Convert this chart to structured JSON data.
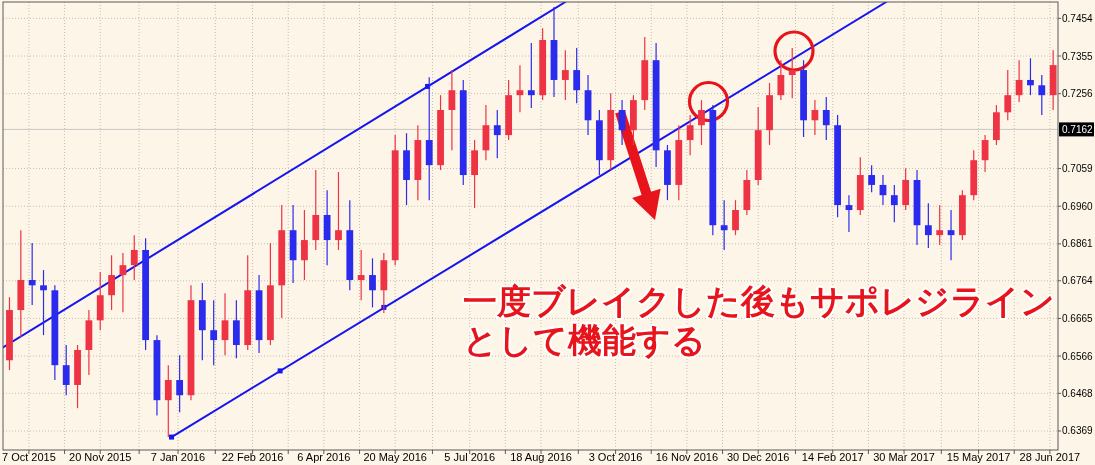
{
  "chart_data": {
    "type": "candlestick",
    "x": [
      "2015-09-25",
      "2015-10-02",
      "2015-10-09",
      "2015-10-16",
      "2015-10-23",
      "2015-10-30",
      "2015-11-06",
      "2015-11-13",
      "2015-11-20",
      "2015-11-27",
      "2015-12-04",
      "2015-12-11",
      "2015-12-18",
      "2015-12-25",
      "2016-01-01",
      "2016-01-08",
      "2016-01-15",
      "2016-01-22",
      "2016-01-29",
      "2016-02-05",
      "2016-02-12",
      "2016-02-19",
      "2016-02-26",
      "2016-03-04",
      "2016-03-11",
      "2016-03-18",
      "2016-03-25",
      "2016-04-01",
      "2016-04-08",
      "2016-04-15",
      "2016-04-22",
      "2016-04-29",
      "2016-05-06",
      "2016-05-13",
      "2016-05-20",
      "2016-05-27",
      "2016-06-03",
      "2016-06-10",
      "2016-06-17",
      "2016-06-24",
      "2016-07-01",
      "2016-07-08",
      "2016-07-15",
      "2016-07-22",
      "2016-07-29",
      "2016-08-05",
      "2016-08-12",
      "2016-08-19",
      "2016-08-26",
      "2016-09-02",
      "2016-09-09",
      "2016-09-16",
      "2016-09-23",
      "2016-09-30",
      "2016-10-07",
      "2016-10-14",
      "2016-10-21",
      "2016-10-28",
      "2016-11-04",
      "2016-11-11",
      "2016-11-18",
      "2016-11-25",
      "2016-12-02",
      "2016-12-09",
      "2016-12-16",
      "2016-12-23",
      "2016-12-30",
      "2017-01-06",
      "2017-01-13",
      "2017-01-20",
      "2017-01-27",
      "2017-02-03",
      "2017-02-10",
      "2017-02-17",
      "2017-02-24",
      "2017-03-03",
      "2017-03-10",
      "2017-03-17",
      "2017-03-24",
      "2017-03-31",
      "2017-04-07",
      "2017-04-14",
      "2017-04-21",
      "2017-04-28",
      "2017-05-05",
      "2017-05-12",
      "2017-05-19",
      "2017-05-26",
      "2017-06-02",
      "2017-06-09",
      "2017-06-16",
      "2017-06-23",
      "2017-06-30"
    ],
    "ohlc": [
      [
        0.6555,
        0.6721,
        0.6529,
        0.6687
      ],
      [
        0.6687,
        0.6897,
        0.6616,
        0.6766
      ],
      [
        0.6766,
        0.6863,
        0.67,
        0.6752
      ],
      [
        0.6752,
        0.6792,
        0.6621,
        0.6739
      ],
      [
        0.6739,
        0.6752,
        0.6503,
        0.6542
      ],
      [
        0.6542,
        0.6595,
        0.6463,
        0.649
      ],
      [
        0.649,
        0.6595,
        0.6429,
        0.6582
      ],
      [
        0.6582,
        0.6687,
        0.6516,
        0.666
      ],
      [
        0.666,
        0.6787,
        0.6634,
        0.6726
      ],
      [
        0.6726,
        0.6831,
        0.6687,
        0.6779
      ],
      [
        0.6779,
        0.6837,
        0.6681,
        0.6805
      ],
      [
        0.6805,
        0.6884,
        0.6766,
        0.6845
      ],
      [
        0.6845,
        0.6876,
        0.6582,
        0.6608
      ],
      [
        0.6608,
        0.6621,
        0.641,
        0.645
      ],
      [
        0.645,
        0.6542,
        0.6353,
        0.6503
      ],
      [
        0.6503,
        0.6568,
        0.6418,
        0.6463
      ],
      [
        0.6463,
        0.6752,
        0.645,
        0.6713
      ],
      [
        0.6713,
        0.6758,
        0.6555,
        0.6634
      ],
      [
        0.6634,
        0.6713,
        0.6542,
        0.6608
      ],
      [
        0.6608,
        0.6731,
        0.6568,
        0.666
      ],
      [
        0.666,
        0.6713,
        0.656,
        0.6595
      ],
      [
        0.6595,
        0.6831,
        0.6582,
        0.6739
      ],
      [
        0.6739,
        0.6779,
        0.6574,
        0.6608
      ],
      [
        0.6608,
        0.6863,
        0.6595,
        0.6752
      ],
      [
        0.6752,
        0.6963,
        0.6666,
        0.6897
      ],
      [
        0.6897,
        0.6963,
        0.6758,
        0.6818
      ],
      [
        0.6818,
        0.695,
        0.6766,
        0.6871
      ],
      [
        0.6871,
        0.7055,
        0.6845,
        0.6937
      ],
      [
        0.6937,
        0.7002,
        0.6805,
        0.6871
      ],
      [
        0.6871,
        0.705,
        0.6845,
        0.6897
      ],
      [
        0.6897,
        0.6976,
        0.6739,
        0.6766
      ],
      [
        0.6766,
        0.6845,
        0.6713,
        0.6779
      ],
      [
        0.6779,
        0.6823,
        0.6694,
        0.6739
      ],
      [
        0.6739,
        0.6837,
        0.6679,
        0.6818
      ],
      [
        0.6818,
        0.7147,
        0.6805,
        0.7107
      ],
      [
        0.7107,
        0.7152,
        0.6963,
        0.7029
      ],
      [
        0.7029,
        0.7173,
        0.6976,
        0.7134
      ],
      [
        0.7134,
        0.7299,
        0.6976,
        0.7068
      ],
      [
        0.7068,
        0.7252,
        0.7055,
        0.7213
      ],
      [
        0.7213,
        0.7318,
        0.7107,
        0.7265
      ],
      [
        0.7265,
        0.7292,
        0.7016,
        0.7042
      ],
      [
        0.7042,
        0.7134,
        0.6955,
        0.7107
      ],
      [
        0.7107,
        0.7226,
        0.7081,
        0.7173
      ],
      [
        0.7173,
        0.7213,
        0.7086,
        0.7147
      ],
      [
        0.7147,
        0.7292,
        0.7134,
        0.7252
      ],
      [
        0.7252,
        0.7331,
        0.7207,
        0.7265
      ],
      [
        0.7265,
        0.7389,
        0.7218,
        0.7252
      ],
      [
        0.7252,
        0.7428,
        0.7239,
        0.7397
      ],
      [
        0.7397,
        0.7484,
        0.7247,
        0.7292
      ],
      [
        0.7292,
        0.737,
        0.7239,
        0.7318
      ],
      [
        0.7318,
        0.7376,
        0.7231,
        0.7265
      ],
      [
        0.7265,
        0.7305,
        0.7147,
        0.7186
      ],
      [
        0.7186,
        0.7213,
        0.7042,
        0.7081
      ],
      [
        0.7081,
        0.7257,
        0.7055,
        0.7213
      ],
      [
        0.7213,
        0.7239,
        0.7121,
        0.716
      ],
      [
        0.716,
        0.7252,
        0.7121,
        0.7239
      ],
      [
        0.7239,
        0.7405,
        0.7213,
        0.7344
      ],
      [
        0.7344,
        0.7389,
        0.7063,
        0.7107
      ],
      [
        0.7107,
        0.7121,
        0.6976,
        0.7016
      ],
      [
        0.7016,
        0.7173,
        0.6976,
        0.7134
      ],
      [
        0.7134,
        0.72,
        0.7094,
        0.7173
      ],
      [
        0.7173,
        0.7239,
        0.7121,
        0.7213
      ],
      [
        0.7213,
        0.7226,
        0.6884,
        0.691
      ],
      [
        0.691,
        0.6976,
        0.6845,
        0.6897
      ],
      [
        0.6897,
        0.6976,
        0.6884,
        0.695
      ],
      [
        0.695,
        0.7055,
        0.6937,
        0.7029
      ],
      [
        0.7029,
        0.7221,
        0.7016,
        0.716
      ],
      [
        0.716,
        0.7284,
        0.7121,
        0.7252
      ],
      [
        0.7252,
        0.7344,
        0.7239,
        0.7305
      ],
      [
        0.7305,
        0.7376,
        0.7244,
        0.7318
      ],
      [
        0.7318,
        0.7344,
        0.7142,
        0.7186
      ],
      [
        0.7186,
        0.7239,
        0.7147,
        0.7213
      ],
      [
        0.7213,
        0.7247,
        0.7134,
        0.7173
      ],
      [
        0.7173,
        0.72,
        0.6931,
        0.6963
      ],
      [
        0.6963,
        0.6989,
        0.6892,
        0.695
      ],
      [
        0.695,
        0.7089,
        0.6937,
        0.7042
      ],
      [
        0.7042,
        0.7068,
        0.6997,
        0.7016
      ],
      [
        0.7016,
        0.7042,
        0.6963,
        0.6989
      ],
      [
        0.6989,
        0.7016,
        0.6918,
        0.6963
      ],
      [
        0.6963,
        0.706,
        0.695,
        0.7029
      ],
      [
        0.7029,
        0.7055,
        0.6858,
        0.691
      ],
      [
        0.691,
        0.6968,
        0.685,
        0.6884
      ],
      [
        0.6884,
        0.6963,
        0.6858,
        0.6897
      ],
      [
        0.6897,
        0.695,
        0.6818,
        0.6884
      ],
      [
        0.6884,
        0.7002,
        0.6871,
        0.6989
      ],
      [
        0.6989,
        0.7107,
        0.6976,
        0.7081
      ],
      [
        0.7081,
        0.7147,
        0.705,
        0.7134
      ],
      [
        0.7134,
        0.7226,
        0.7121,
        0.7207
      ],
      [
        0.7207,
        0.7318,
        0.7186,
        0.7252
      ],
      [
        0.7252,
        0.7344,
        0.7234,
        0.7292
      ],
      [
        0.7292,
        0.7349,
        0.7252,
        0.7278
      ],
      [
        0.7278,
        0.7305,
        0.72,
        0.7252
      ],
      [
        0.7252,
        0.737,
        0.7213,
        0.7331
      ]
    ],
    "colors": [
      "#ee3344",
      "#ee3344",
      "#2b2bee",
      "#2b2bee",
      "#2b2bee",
      "#2b2bee",
      "#ee3344",
      "#ee3344",
      "#ee3344",
      "#ee3344",
      "#ee3344",
      "#ee3344",
      "#2b2bee",
      "#2b2bee",
      "#ee3344",
      "#2b2bee",
      "#ee3344",
      "#2b2bee",
      "#2b2bee",
      "#ee3344",
      "#2b2bee",
      "#ee3344",
      "#2b2bee",
      "#ee3344",
      "#ee3344",
      "#2b2bee",
      "#ee3344",
      "#ee3344",
      "#2b2bee",
      "#ee3344",
      "#2b2bee",
      "#ee3344",
      "#2b2bee",
      "#ee3344",
      "#ee3344",
      "#2b2bee",
      "#ee3344",
      "#2b2bee",
      "#ee3344",
      "#ee3344",
      "#2b2bee",
      "#ee3344",
      "#ee3344",
      "#2b2bee",
      "#ee3344",
      "#ee3344",
      "#2b2bee",
      "#ee3344",
      "#2b2bee",
      "#ee3344",
      "#2b2bee",
      "#2b2bee",
      "#2b2bee",
      "#ee3344",
      "#2b2bee",
      "#ee3344",
      "#ee3344",
      "#2b2bee",
      "#2b2bee",
      "#ee3344",
      "#ee3344",
      "#ee3344",
      "#2b2bee",
      "#2b2bee",
      "#ee3344",
      "#ee3344",
      "#ee3344",
      "#ee3344",
      "#ee3344",
      "#ee3344",
      "#2b2bee",
      "#ee3344",
      "#2b2bee",
      "#2b2bee",
      "#2b2bee",
      "#ee3344",
      "#2b2bee",
      "#2b2bee",
      "#2b2bee",
      "#ee3344",
      "#2b2bee",
      "#2b2bee",
      "#ee3344",
      "#2b2bee",
      "#ee3344",
      "#ee3344",
      "#ee3344",
      "#ee3344",
      "#ee3344",
      "#ee3344",
      "#2b2bee",
      "#2b2bee",
      "#ee3344"
    ],
    "series": [
      {
        "type": "line",
        "color": "#1515f0",
        "x": [
          "2015-09-21",
          "2016-09-02"
        ],
        "values": [
          0.6589,
          0.7497
        ]
      },
      {
        "type": "line",
        "color": "#1515f0",
        "x": [
          "2016-01-03",
          "2017-03-19"
        ],
        "values": [
          0.6353,
          0.7497
        ]
      },
      {
        "type": "scatter",
        "marker": "square",
        "color": "#1515f0",
        "x": [
          "2016-06-09",
          "2016-01-03",
          "2016-03-10",
          "2016-05-13"
        ],
        "values": [
          0.7275,
          0.6353,
          0.6527,
          0.6694
        ]
      }
    ],
    "xlim": [
      "2015-09-21",
      "2017-07-03"
    ],
    "xticks": [
      {
        "value": "2015-10-07",
        "label": "7 Oct 2015"
      },
      {
        "value": "2015-10-29",
        "label": null
      },
      {
        "value": "2015-11-20",
        "label": "20 Nov 2015"
      },
      {
        "value": "2015-12-14",
        "label": null
      },
      {
        "value": "2016-01-07",
        "label": "7 Jan 2016"
      },
      {
        "value": "2016-01-30",
        "label": null
      },
      {
        "value": "2016-02-22",
        "label": "22 Feb 2016"
      },
      {
        "value": "2016-03-15",
        "label": null
      },
      {
        "value": "2016-04-06",
        "label": "6 Apr 2016"
      },
      {
        "value": "2016-04-28",
        "label": null
      },
      {
        "value": "2016-05-20",
        "label": "20 May 2016"
      },
      {
        "value": "2016-06-12",
        "label": null
      },
      {
        "value": "2016-07-05",
        "label": "5 Jul 2016"
      },
      {
        "value": "2016-07-27",
        "label": null
      },
      {
        "value": "2016-08-18",
        "label": "18 Aug 2016"
      },
      {
        "value": "2016-09-10",
        "label": null
      },
      {
        "value": "2016-10-03",
        "label": "3 Oct 2016"
      },
      {
        "value": "2016-10-25",
        "label": null
      },
      {
        "value": "2016-11-16",
        "label": "16 Nov 2016"
      },
      {
        "value": "2016-12-08",
        "label": null
      },
      {
        "value": "2016-12-30",
        "label": "30 Dec 2016"
      },
      {
        "value": "2017-01-22",
        "label": null
      },
      {
        "value": "2017-02-14",
        "label": "14 Feb 2017"
      },
      {
        "value": "2017-03-08",
        "label": null
      },
      {
        "value": "2017-03-30",
        "label": "30 Mar 2017"
      },
      {
        "value": "2017-04-22",
        "label": null
      },
      {
        "value": "2017-05-15",
        "label": "15 May 2017"
      },
      {
        "value": "2017-06-06",
        "label": null
      },
      {
        "value": "2017-06-28",
        "label": "28 Jun 2017"
      }
    ],
    "ylim": [
      0.6319,
      0.7497
    ],
    "yticks": [
      0.6369,
      0.6468,
      0.6566,
      0.6665,
      0.6764,
      0.6861,
      {
        "value": 0.696,
        "label": "0.6960"
      },
      0.7059,
      0.7256,
      0.7355,
      0.7454
    ],
    "grid": true,
    "ref_lines": [
      {
        "axis": "y",
        "value": 0.7162,
        "label": "0.7162",
        "color": "#c8c8c8"
      }
    ],
    "annotations": [
      "一度ブレイクした後もサポレジライン",
      "として機能する"
    ]
  }
}
